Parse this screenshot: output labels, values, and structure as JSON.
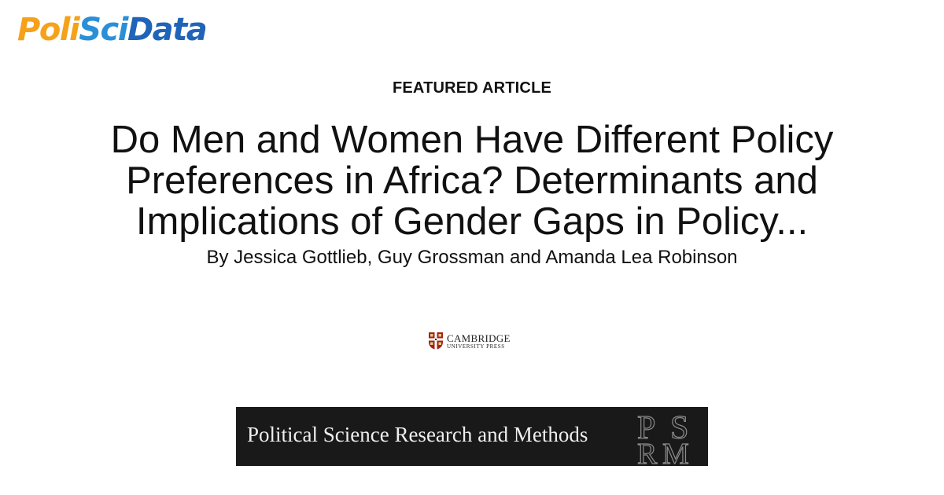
{
  "brand": {
    "logo_part1": "Poli",
    "logo_part2": "Sci",
    "logo_part3": "Data",
    "colors": {
      "poli": "#f5a21a",
      "sci": "#2a8fd6",
      "data": "#1f64b8"
    }
  },
  "featured_label": "FEATURED ARTICLE",
  "article": {
    "title": "Do Men and Women Have Different Policy Preferences in Africa? Determinants and Implications of Gender Gaps in Policy...",
    "authors": "By Jessica Gottlieb, Guy Grossman and Amanda Lea Robinson"
  },
  "publisher": {
    "name_line1": "CAMBRIDGE",
    "name_line2": "UNIVERSITY PRESS",
    "icon": "cambridge-shield-icon"
  },
  "journal": {
    "name": "Political Science Research and Methods",
    "mark_letters": [
      "P",
      "S",
      "R",
      "M"
    ],
    "banner_color": "#191919"
  }
}
